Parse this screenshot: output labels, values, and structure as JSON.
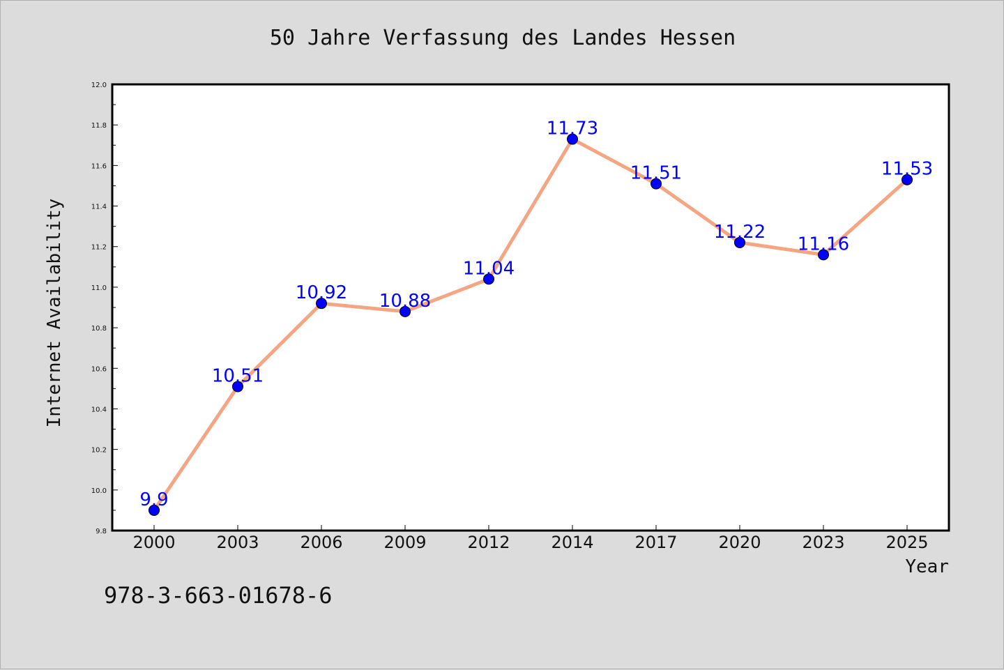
{
  "chart_data": {
    "type": "line",
    "title": "50 Jahre Verfassung des Landes Hessen",
    "xlabel": "Year",
    "ylabel": "Internet Availability",
    "categories": [
      "2000",
      "2003",
      "2006",
      "2009",
      "2012",
      "2014",
      "2017",
      "2020",
      "2023",
      "2025"
    ],
    "series": [
      {
        "values": [
          9.9,
          10.51,
          10.92,
          10.88,
          11.04,
          11.73,
          11.51,
          11.22,
          11.16,
          11.53
        ],
        "labels": [
          "9.9",
          "10.51",
          "10.92",
          "10.88",
          "11.04",
          "11.73",
          "11.51",
          "11.22",
          "11.16",
          "11.53"
        ]
      }
    ],
    "ylim": [
      9.8,
      12.0
    ],
    "yticks": [
      "9.8",
      "10.0",
      "10.2",
      "10.4",
      "10.6",
      "10.8",
      "11.0",
      "11.2",
      "11.4",
      "11.6",
      "11.8",
      "12.0"
    ],
    "grid": false,
    "colors": {
      "line": "#f4a582",
      "marker": "#0000ff",
      "label": "#0000ff",
      "background": "#dcdcdc",
      "plot": "#ffffff"
    }
  },
  "footer": {
    "isbn": "978-3-663-01678-6"
  }
}
